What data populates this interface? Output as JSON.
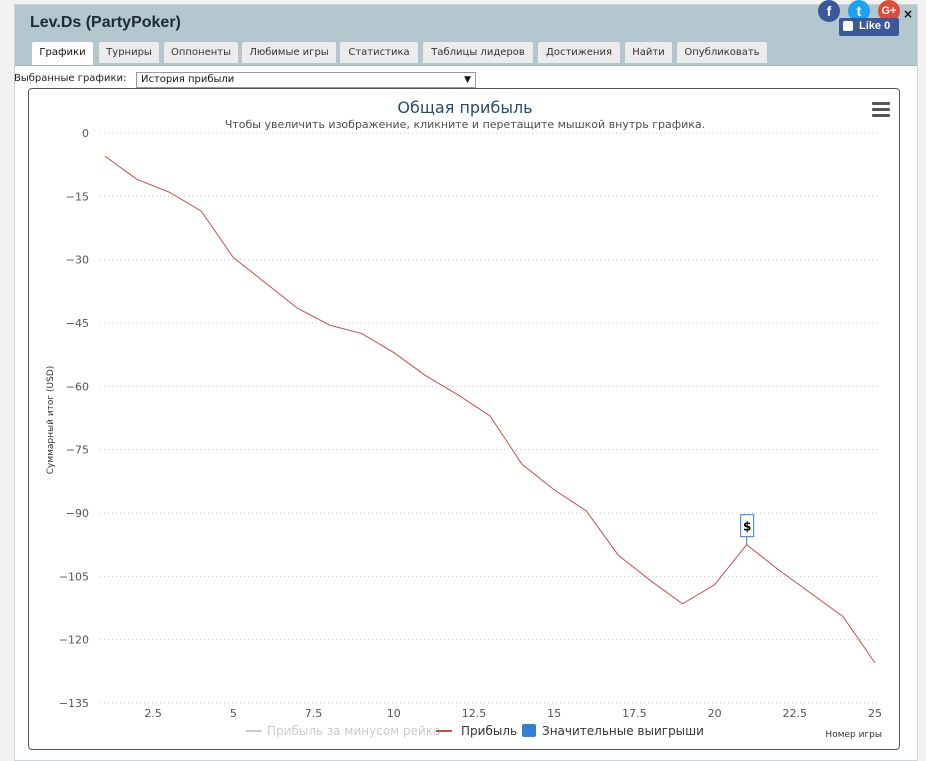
{
  "window": {
    "title": "Lev.Ds (PartyPoker)",
    "tabs": [
      "Графики",
      "Турниры",
      "Оппоненты",
      "Любимые игры",
      "Статистика",
      "Таблицы лидеров",
      "Достижения",
      "Найти",
      "Опубликовать"
    ],
    "active_tab": "Графики"
  },
  "social": {
    "facebook": "f",
    "twitter": "t",
    "google": "G+",
    "like_label": "Like 0",
    "close": "×",
    "icons": [
      "facebook-icon",
      "twitter-icon",
      "google-plus-icon",
      "thumbs-up-icon",
      "close-icon"
    ]
  },
  "selector": {
    "label": "Выбранные графики:",
    "value": "История прибыли"
  },
  "colors": {
    "header_bg": "#b3c7cf",
    "profit_line": "#c0504d",
    "big_wins": "#2f7ed8",
    "rake_line": "#cccccc"
  },
  "chart_data": {
    "type": "line",
    "title": "Общая прибыль",
    "subtitle": "Чтобы увеличить изображение, кликните и перетащите мышкой внутрь графика.",
    "xlabel": "Номер игры",
    "ylabel": "Суммарный итог (USD)",
    "xlim": [
      1,
      25
    ],
    "ylim": [
      -135,
      0
    ],
    "x_ticks": [
      2.5,
      5,
      7.5,
      10,
      12.5,
      15,
      17.5,
      20,
      22.5,
      25
    ],
    "y_ticks": [
      0,
      -15,
      -30,
      -45,
      -60,
      -75,
      -90,
      -105,
      -120,
      -135
    ],
    "grid": true,
    "legend_position": "bottom",
    "series": [
      {
        "name": "Прибыль",
        "x": [
          1,
          2,
          3,
          4,
          5,
          6,
          7,
          8,
          9,
          10,
          11,
          12,
          13,
          14,
          15,
          16,
          17,
          18,
          19,
          20,
          21,
          22,
          23,
          24,
          25
        ],
        "values": [
          -5.5,
          -11,
          -14,
          -18.5,
          -29.5,
          -35.5,
          -41.5,
          -45.5,
          -47.5,
          -52,
          -57.5,
          -62,
          -67,
          -78.5,
          -84.5,
          -89.5,
          -100,
          -106,
          -111.5,
          -107,
          -97.5,
          -103.5,
          -109,
          -114.5,
          -125.5
        ]
      }
    ],
    "legend": [
      {
        "name": "Прибыль за минусом рейка",
        "enabled": false
      },
      {
        "name": "Прибыль",
        "enabled": true
      },
      {
        "name": "Значительные выигрыши",
        "enabled": true
      }
    ],
    "markers": [
      {
        "x": 21,
        "y": -97.5,
        "label": "$"
      }
    ]
  }
}
